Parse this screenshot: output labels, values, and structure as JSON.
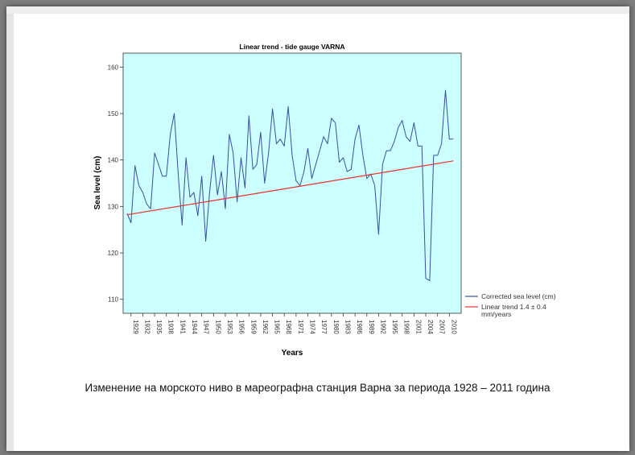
{
  "caption": "Изменение на морското ниво в мареографна станция Варна за периода 1928 – 2011 година",
  "chart_data": {
    "type": "line",
    "title": "Linear trend - tide gauge VARNA",
    "xlabel": "Years",
    "ylabel": "Sea level (cm)",
    "ylim": [
      107,
      163
    ],
    "yticks": [
      110,
      120,
      130,
      140,
      150,
      160
    ],
    "xticks": [
      1929,
      1932,
      1935,
      1938,
      1941,
      1944,
      1947,
      1950,
      1953,
      1956,
      1959,
      1962,
      1965,
      1968,
      1971,
      1974,
      1977,
      1980,
      1983,
      1986,
      1989,
      1992,
      1995,
      1998,
      2001,
      2004,
      2007,
      2010
    ],
    "xlim": [
      1927,
      2013
    ],
    "grid": false,
    "background": "#ccffff",
    "legend_position": "right-bottom",
    "series": [
      {
        "name": "Corrected sea level (cm)",
        "color": "#3a4fa0",
        "x": [
          1928,
          1929,
          1930,
          1931,
          1932,
          1933,
          1934,
          1935,
          1936,
          1937,
          1938,
          1939,
          1940,
          1941,
          1942,
          1943,
          1944,
          1945,
          1946,
          1947,
          1948,
          1949,
          1950,
          1951,
          1952,
          1953,
          1954,
          1955,
          1956,
          1957,
          1958,
          1959,
          1960,
          1961,
          1962,
          1963,
          1964,
          1965,
          1966,
          1967,
          1968,
          1969,
          1970,
          1971,
          1972,
          1973,
          1974,
          1975,
          1976,
          1977,
          1978,
          1979,
          1980,
          1981,
          1982,
          1983,
          1984,
          1985,
          1986,
          1987,
          1988,
          1989,
          1990,
          1991,
          1992,
          1993,
          1994,
          1995,
          1996,
          1997,
          1998,
          1999,
          2000,
          2001,
          2002,
          2003,
          2004,
          2005,
          2006,
          2007,
          2008,
          2009,
          2010,
          2011
        ],
        "values": [
          128.5,
          126.5,
          138.8,
          134.5,
          133,
          130.5,
          129.5,
          141.5,
          139,
          136.5,
          136.5,
          145.5,
          150,
          137,
          126,
          140.5,
          132,
          133,
          128,
          136.5,
          122.5,
          133,
          141,
          132.5,
          137.5,
          129.5,
          145.5,
          141.5,
          131,
          140.5,
          134,
          149.5,
          138,
          139,
          146,
          135,
          141.5,
          151,
          143.5,
          144.5,
          143,
          151.5,
          141,
          135.5,
          134.5,
          137.5,
          142.5,
          136,
          139,
          142,
          145,
          143.5,
          149,
          148,
          139.5,
          140.5,
          137.5,
          138,
          144.5,
          147.5,
          141,
          136,
          137,
          134.5,
          124,
          139,
          142,
          142,
          144,
          147,
          148.5,
          145,
          144,
          148,
          143,
          143,
          114.5,
          114,
          141,
          141,
          143.5,
          155,
          144.5,
          144.5
        ]
      },
      {
        "name": "Linear trend 1.4 ± 0.4 mm/years",
        "color": "#e8312b",
        "x": [
          1928,
          2011
        ],
        "values": [
          128.2,
          139.8
        ]
      }
    ]
  }
}
